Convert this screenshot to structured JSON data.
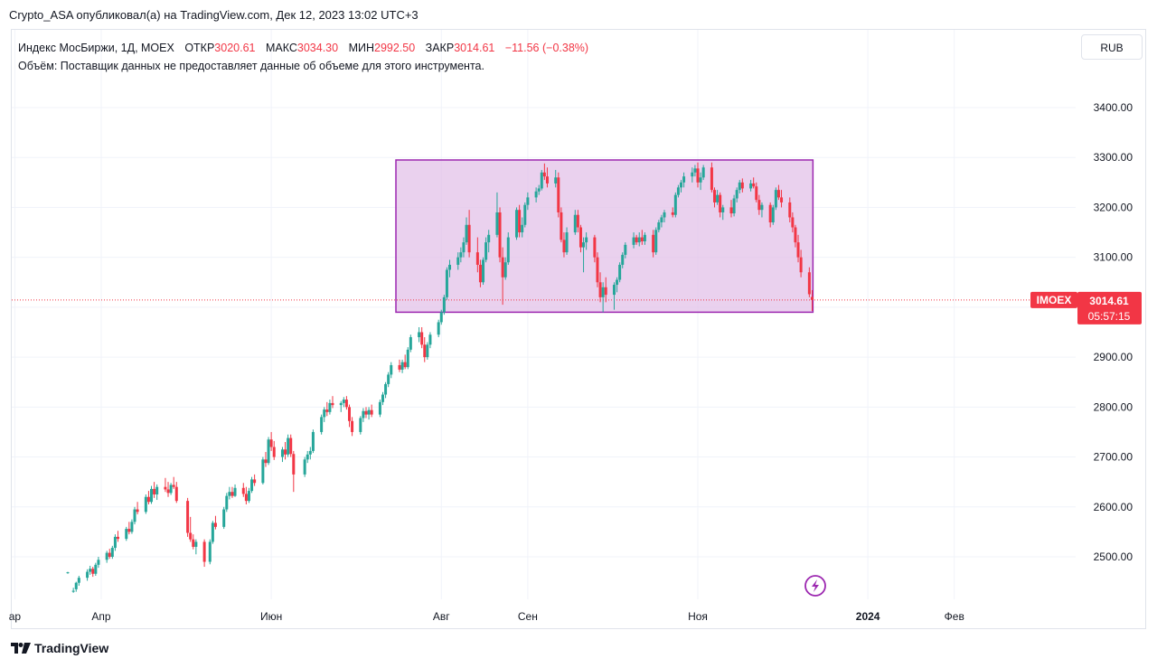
{
  "header": {
    "published_text": "Crypto_ASA опубликовал(а) на TradingView.com, Дек 12, 2023 13:02 UTC+3"
  },
  "legend": {
    "symbol_line": "Индекс МосБиржи, 1Д, MOEX",
    "open_label": "ОТКР",
    "open_value": "3020.61",
    "high_label": "МАКС",
    "high_value": "3034.30",
    "low_label": "МИН",
    "low_value": "2992.50",
    "close_label": "ЗАКР",
    "close_value": "3014.61",
    "change": "−11.56 (−0.38%)",
    "volume_line": "Объём: Поставщик данных не предоставляет данные об объеме для этого инструмента."
  },
  "toolbar": {
    "currency_label": "RUB"
  },
  "price_badge": {
    "ticker": "IMOEX",
    "price": "3014.61",
    "countdown": "05:57:15"
  },
  "footer": {
    "logo_text": "TradingView"
  },
  "colors": {
    "up": "#26a69a",
    "down": "#f23645",
    "box_fill": "#e1bee7",
    "box_stroke": "#9c27b0",
    "grid": "#f0f3fa",
    "axis_text": "#131722",
    "badge_bg": "#f23645"
  },
  "icons": {
    "replay": "lightning-icon",
    "logo": "tradingview-logo-icon"
  },
  "chart_data": {
    "type": "candlestick",
    "symbol": "IMOEX",
    "y_ticks": [
      2500,
      2600,
      2700,
      2800,
      2900,
      3000,
      3100,
      3200,
      3300,
      3400
    ],
    "ylim": [
      2420,
      3530
    ],
    "x_ticks": [
      {
        "label": "ар",
        "date": "2023-03-01"
      },
      {
        "label": "Апр",
        "date": "2023-04-01"
      },
      {
        "label": "Июн",
        "date": "2023-06-01"
      },
      {
        "label": "Авг",
        "date": "2023-08-01"
      },
      {
        "label": "Сен",
        "date": "2023-09-01"
      },
      {
        "label": "Ноя",
        "date": "2023-11-01"
      },
      {
        "label": "2024",
        "date": "2024-01-01"
      },
      {
        "label": "Фев",
        "date": "2024-02-01"
      }
    ],
    "last_price": 3014.61,
    "rectangle": {
      "date_start": "2023-07-17",
      "date_end": "2023-12-11",
      "price_low": 2990,
      "price_high": 3295
    },
    "candles": [
      [
        "2023-03-20",
        2468,
        2470,
        2466,
        2469
      ],
      [
        "2023-03-22",
        2430,
        2438,
        2428,
        2432
      ],
      [
        "2023-03-23",
        2435,
        2450,
        2430,
        2448
      ],
      [
        "2023-03-24",
        2448,
        2462,
        2442,
        2458
      ],
      [
        "2023-03-27",
        2458,
        2475,
        2452,
        2470
      ],
      [
        "2023-03-28",
        2470,
        2482,
        2464,
        2476
      ],
      [
        "2023-03-29",
        2476,
        2480,
        2460,
        2466
      ],
      [
        "2023-03-30",
        2466,
        2488,
        2462,
        2484
      ],
      [
        "2023-03-31",
        2484,
        2500,
        2478,
        2494
      ],
      [
        "2023-04-03",
        2494,
        2512,
        2488,
        2508
      ],
      [
        "2023-04-04",
        2508,
        2516,
        2496,
        2500
      ],
      [
        "2023-04-05",
        2500,
        2522,
        2496,
        2518
      ],
      [
        "2023-04-06",
        2518,
        2545,
        2512,
        2540
      ],
      [
        "2023-04-07",
        2540,
        2552,
        2530,
        2536
      ],
      [
        "2023-04-10",
        2536,
        2560,
        2532,
        2556
      ],
      [
        "2023-04-11",
        2556,
        2570,
        2545,
        2550
      ],
      [
        "2023-04-12",
        2550,
        2575,
        2546,
        2570
      ],
      [
        "2023-04-13",
        2570,
        2600,
        2565,
        2595
      ],
      [
        "2023-04-14",
        2595,
        2610,
        2585,
        2590
      ],
      [
        "2023-04-17",
        2590,
        2625,
        2586,
        2620
      ],
      [
        "2023-04-18",
        2620,
        2632,
        2605,
        2610
      ],
      [
        "2023-04-19",
        2610,
        2642,
        2606,
        2636
      ],
      [
        "2023-04-20",
        2636,
        2650,
        2618,
        2625
      ],
      [
        "2023-04-21",
        2625,
        2645,
        2614,
        2640
      ],
      [
        "2023-04-24",
        2640,
        2658,
        2630,
        2635
      ],
      [
        "2023-04-25",
        2635,
        2650,
        2620,
        2628
      ],
      [
        "2023-04-26",
        2628,
        2648,
        2624,
        2644
      ],
      [
        "2023-04-27",
        2644,
        2660,
        2636,
        2640
      ],
      [
        "2023-04-28",
        2640,
        2650,
        2608,
        2612
      ],
      [
        "2023-05-02",
        2612,
        2618,
        2540,
        2548
      ],
      [
        "2023-05-03",
        2548,
        2580,
        2530,
        2535
      ],
      [
        "2023-05-04",
        2535,
        2545,
        2515,
        2520
      ],
      [
        "2023-05-05",
        2520,
        2535,
        2505,
        2530
      ],
      [
        "2023-05-08",
        2530,
        2535,
        2480,
        2490
      ],
      [
        "2023-05-10",
        2490,
        2535,
        2485,
        2530
      ],
      [
        "2023-05-11",
        2530,
        2572,
        2526,
        2568
      ],
      [
        "2023-05-12",
        2568,
        2582,
        2555,
        2560
      ],
      [
        "2023-05-15",
        2560,
        2600,
        2556,
        2595
      ],
      [
        "2023-05-16",
        2595,
        2628,
        2590,
        2622
      ],
      [
        "2023-05-17",
        2622,
        2640,
        2615,
        2630
      ],
      [
        "2023-05-18",
        2630,
        2640,
        2618,
        2622
      ],
      [
        "2023-05-19",
        2622,
        2645,
        2620,
        2638
      ],
      [
        "2023-05-22",
        2638,
        2648,
        2620,
        2626
      ],
      [
        "2023-05-23",
        2626,
        2640,
        2605,
        2612
      ],
      [
        "2023-05-24",
        2612,
        2638,
        2608,
        2632
      ],
      [
        "2023-05-25",
        2632,
        2660,
        2628,
        2655
      ],
      [
        "2023-05-26",
        2655,
        2665,
        2642,
        2648
      ],
      [
        "2023-05-29",
        2648,
        2700,
        2645,
        2695
      ],
      [
        "2023-05-30",
        2695,
        2710,
        2680,
        2688
      ],
      [
        "2023-05-31",
        2688,
        2740,
        2684,
        2735
      ],
      [
        "2023-06-01",
        2735,
        2750,
        2712,
        2720
      ],
      [
        "2023-06-02",
        2720,
        2732,
        2694,
        2700
      ],
      [
        "2023-06-05",
        2700,
        2720,
        2690,
        2715
      ],
      [
        "2023-06-06",
        2715,
        2730,
        2695,
        2705
      ],
      [
        "2023-06-07",
        2705,
        2745,
        2700,
        2738
      ],
      [
        "2023-06-08",
        2738,
        2745,
        2700,
        2706
      ],
      [
        "2023-06-09",
        2706,
        2712,
        2630,
        2665
      ],
      [
        "2023-06-13",
        2665,
        2700,
        2660,
        2695
      ],
      [
        "2023-06-14",
        2695,
        2712,
        2688,
        2705
      ],
      [
        "2023-06-15",
        2705,
        2720,
        2695,
        2712
      ],
      [
        "2023-06-16",
        2712,
        2755,
        2708,
        2750
      ],
      [
        "2023-06-19",
        2750,
        2785,
        2745,
        2780
      ],
      [
        "2023-06-20",
        2780,
        2800,
        2770,
        2795
      ],
      [
        "2023-06-21",
        2795,
        2810,
        2782,
        2790
      ],
      [
        "2023-06-22",
        2790,
        2815,
        2785,
        2808
      ],
      [
        "2023-06-23",
        2808,
        2822,
        2798,
        2804
      ],
      [
        "2023-06-26",
        2804,
        2812,
        2790,
        2808
      ],
      [
        "2023-06-27",
        2808,
        2820,
        2800,
        2815
      ],
      [
        "2023-06-28",
        2815,
        2822,
        2795,
        2800
      ],
      [
        "2023-06-29",
        2800,
        2805,
        2760,
        2772
      ],
      [
        "2023-06-30",
        2772,
        2780,
        2742,
        2750
      ],
      [
        "2023-07-03",
        2750,
        2782,
        2745,
        2778
      ],
      [
        "2023-07-04",
        2778,
        2798,
        2770,
        2792
      ],
      [
        "2023-07-05",
        2792,
        2800,
        2778,
        2785
      ],
      [
        "2023-07-06",
        2785,
        2800,
        2775,
        2794
      ],
      [
        "2023-07-07",
        2794,
        2805,
        2780,
        2785
      ],
      [
        "2023-07-10",
        2785,
        2815,
        2780,
        2810
      ],
      [
        "2023-07-11",
        2810,
        2830,
        2804,
        2825
      ],
      [
        "2023-07-12",
        2825,
        2850,
        2818,
        2846
      ],
      [
        "2023-07-13",
        2846,
        2870,
        2840,
        2865
      ],
      [
        "2023-07-14",
        2865,
        2890,
        2858,
        2884
      ],
      [
        "2023-07-17",
        2884,
        2895,
        2870,
        2875
      ],
      [
        "2023-07-18",
        2875,
        2895,
        2868,
        2890
      ],
      [
        "2023-07-19",
        2890,
        2905,
        2876,
        2880
      ],
      [
        "2023-07-20",
        2880,
        2920,
        2876,
        2915
      ],
      [
        "2023-07-21",
        2915,
        2945,
        2910,
        2940
      ],
      [
        "2023-07-24",
        2940,
        2960,
        2930,
        2950
      ],
      [
        "2023-07-25",
        2950,
        2960,
        2918,
        2925
      ],
      [
        "2023-07-26",
        2925,
        2940,
        2890,
        2900
      ],
      [
        "2023-07-27",
        2900,
        2930,
        2895,
        2925
      ],
      [
        "2023-07-28",
        2925,
        2950,
        2918,
        2945
      ],
      [
        "2023-07-31",
        2945,
        2975,
        2940,
        2970
      ],
      [
        "2023-08-01",
        2970,
        2995,
        2965,
        2990
      ],
      [
        "2023-08-02",
        2990,
        3025,
        2985,
        3020
      ],
      [
        "2023-08-03",
        3020,
        3080,
        3015,
        3075
      ],
      [
        "2023-08-04",
        3075,
        3095,
        3060,
        3085
      ],
      [
        "2023-08-07",
        3085,
        3110,
        3075,
        3100
      ],
      [
        "2023-08-08",
        3100,
        3120,
        3090,
        3110
      ],
      [
        "2023-08-09",
        3110,
        3140,
        3100,
        3130
      ],
      [
        "2023-08-10",
        3130,
        3180,
        3125,
        3165
      ],
      [
        "2023-08-11",
        3165,
        3195,
        3100,
        3110
      ],
      [
        "2023-08-14",
        3110,
        3140,
        3070,
        3085
      ],
      [
        "2023-08-15",
        3085,
        3095,
        3040,
        3050
      ],
      [
        "2023-08-16",
        3050,
        3100,
        3045,
        3095
      ],
      [
        "2023-08-17",
        3095,
        3140,
        3090,
        3130
      ],
      [
        "2023-08-18",
        3130,
        3155,
        3110,
        3145
      ],
      [
        "2023-08-21",
        3145,
        3230,
        3140,
        3190
      ],
      [
        "2023-08-22",
        3190,
        3200,
        3090,
        3100
      ],
      [
        "2023-08-23",
        3100,
        3120,
        3005,
        3060
      ],
      [
        "2023-08-24",
        3060,
        3100,
        3055,
        3090
      ],
      [
        "2023-08-25",
        3090,
        3150,
        3085,
        3140
      ],
      [
        "2023-08-28",
        3140,
        3200,
        3135,
        3195
      ],
      [
        "2023-08-29",
        3195,
        3205,
        3140,
        3150
      ],
      [
        "2023-08-30",
        3150,
        3180,
        3140,
        3165
      ],
      [
        "2023-08-31",
        3165,
        3210,
        3160,
        3205
      ],
      [
        "2023-09-01",
        3205,
        3230,
        3195,
        3220
      ],
      [
        "2023-09-04",
        3220,
        3240,
        3210,
        3232
      ],
      [
        "2023-09-05",
        3232,
        3245,
        3225,
        3238
      ],
      [
        "2023-09-06",
        3238,
        3275,
        3234,
        3270
      ],
      [
        "2023-09-07",
        3270,
        3288,
        3255,
        3262
      ],
      [
        "2023-09-08",
        3262,
        3280,
        3240,
        3248
      ],
      [
        "2023-09-11",
        3248,
        3275,
        3240,
        3260
      ],
      [
        "2023-09-12",
        3260,
        3270,
        3180,
        3190
      ],
      [
        "2023-09-13",
        3190,
        3200,
        3130,
        3135
      ],
      [
        "2023-09-14",
        3135,
        3150,
        3100,
        3110
      ],
      [
        "2023-09-15",
        3110,
        3160,
        3105,
        3150
      ],
      [
        "2023-09-18",
        3150,
        3195,
        3145,
        3185
      ],
      [
        "2023-09-19",
        3185,
        3195,
        3150,
        3160
      ],
      [
        "2023-09-20",
        3160,
        3165,
        3110,
        3120
      ],
      [
        "2023-09-21",
        3120,
        3140,
        3070,
        3130
      ],
      [
        "2023-09-22",
        3130,
        3150,
        3115,
        3140
      ],
      [
        "2023-09-25",
        3140,
        3145,
        3090,
        3100
      ],
      [
        "2023-09-26",
        3100,
        3110,
        3040,
        3050
      ],
      [
        "2023-09-27",
        3050,
        3070,
        3010,
        3020
      ],
      [
        "2023-09-28",
        3020,
        3050,
        2990,
        3040
      ],
      [
        "2023-09-29",
        3040,
        3060,
        3010,
        3025
      ],
      [
        "2023-10-02",
        3025,
        3050,
        2995,
        3045
      ],
      [
        "2023-10-03",
        3045,
        3060,
        3030,
        3055
      ],
      [
        "2023-10-04",
        3055,
        3090,
        3050,
        3085
      ],
      [
        "2023-10-05",
        3085,
        3110,
        3078,
        3105
      ],
      [
        "2023-10-06",
        3105,
        3130,
        3098,
        3125
      ],
      [
        "2023-10-09",
        3125,
        3150,
        3118,
        3140
      ],
      [
        "2023-10-10",
        3140,
        3145,
        3125,
        3130
      ],
      [
        "2023-10-11",
        3130,
        3150,
        3122,
        3140
      ],
      [
        "2023-10-12",
        3140,
        3155,
        3125,
        3132
      ],
      [
        "2023-10-13",
        3132,
        3150,
        3125,
        3145
      ],
      [
        "2023-10-16",
        3145,
        3155,
        3100,
        3110
      ],
      [
        "2023-10-17",
        3110,
        3160,
        3105,
        3155
      ],
      [
        "2023-10-18",
        3155,
        3175,
        3150,
        3170
      ],
      [
        "2023-10-19",
        3170,
        3185,
        3160,
        3180
      ],
      [
        "2023-10-20",
        3180,
        3195,
        3170,
        3190
      ],
      [
        "2023-10-23",
        3190,
        3200,
        3180,
        3185
      ],
      [
        "2023-10-24",
        3185,
        3230,
        3180,
        3225
      ],
      [
        "2023-10-25",
        3225,
        3245,
        3220,
        3240
      ],
      [
        "2023-10-26",
        3240,
        3255,
        3230,
        3250
      ],
      [
        "2023-10-27",
        3250,
        3270,
        3240,
        3262
      ],
      [
        "2023-10-30",
        3262,
        3280,
        3250,
        3270
      ],
      [
        "2023-10-31",
        3270,
        3285,
        3262,
        3278
      ],
      [
        "2023-11-01",
        3278,
        3290,
        3240,
        3250
      ],
      [
        "2023-11-02",
        3250,
        3270,
        3235,
        3260
      ],
      [
        "2023-11-03",
        3260,
        3285,
        3255,
        3280
      ],
      [
        "2023-11-06",
        3280,
        3290,
        3230,
        3235
      ],
      [
        "2023-11-07",
        3235,
        3240,
        3200,
        3210
      ],
      [
        "2023-11-08",
        3210,
        3235,
        3205,
        3225
      ],
      [
        "2023-11-09",
        3225,
        3230,
        3180,
        3190
      ],
      [
        "2023-11-10",
        3190,
        3205,
        3175,
        3200
      ],
      [
        "2023-11-13",
        3200,
        3215,
        3180,
        3188
      ],
      [
        "2023-11-14",
        3188,
        3225,
        3182,
        3218
      ],
      [
        "2023-11-15",
        3218,
        3240,
        3210,
        3235
      ],
      [
        "2023-11-16",
        3235,
        3255,
        3228,
        3250
      ],
      [
        "2023-11-17",
        3250,
        3258,
        3230,
        3238
      ],
      [
        "2023-11-20",
        3238,
        3255,
        3232,
        3248
      ],
      [
        "2023-11-21",
        3248,
        3260,
        3238,
        3242
      ],
      [
        "2023-11-22",
        3242,
        3250,
        3210,
        3215
      ],
      [
        "2023-11-23",
        3215,
        3225,
        3185,
        3195
      ],
      [
        "2023-11-24",
        3195,
        3210,
        3180,
        3205
      ],
      [
        "2023-11-27",
        3205,
        3210,
        3160,
        3170
      ],
      [
        "2023-11-28",
        3170,
        3205,
        3165,
        3200
      ],
      [
        "2023-11-29",
        3200,
        3240,
        3195,
        3235
      ],
      [
        "2023-11-30",
        3235,
        3245,
        3215,
        3220
      ],
      [
        "2023-12-01",
        3220,
        3235,
        3200,
        3210
      ],
      [
        "2023-12-04",
        3210,
        3220,
        3170,
        3180
      ],
      [
        "2023-12-05",
        3180,
        3190,
        3150,
        3160
      ],
      [
        "2023-12-06",
        3160,
        3165,
        3120,
        3130
      ],
      [
        "2023-12-07",
        3130,
        3145,
        3090,
        3100
      ],
      [
        "2023-12-08",
        3100,
        3115,
        3060,
        3070
      ],
      [
        "2023-12-11",
        3070,
        3080,
        3020,
        3026
      ],
      [
        "2023-12-12",
        3020.61,
        3034.3,
        2992.5,
        3014.61
      ]
    ]
  }
}
